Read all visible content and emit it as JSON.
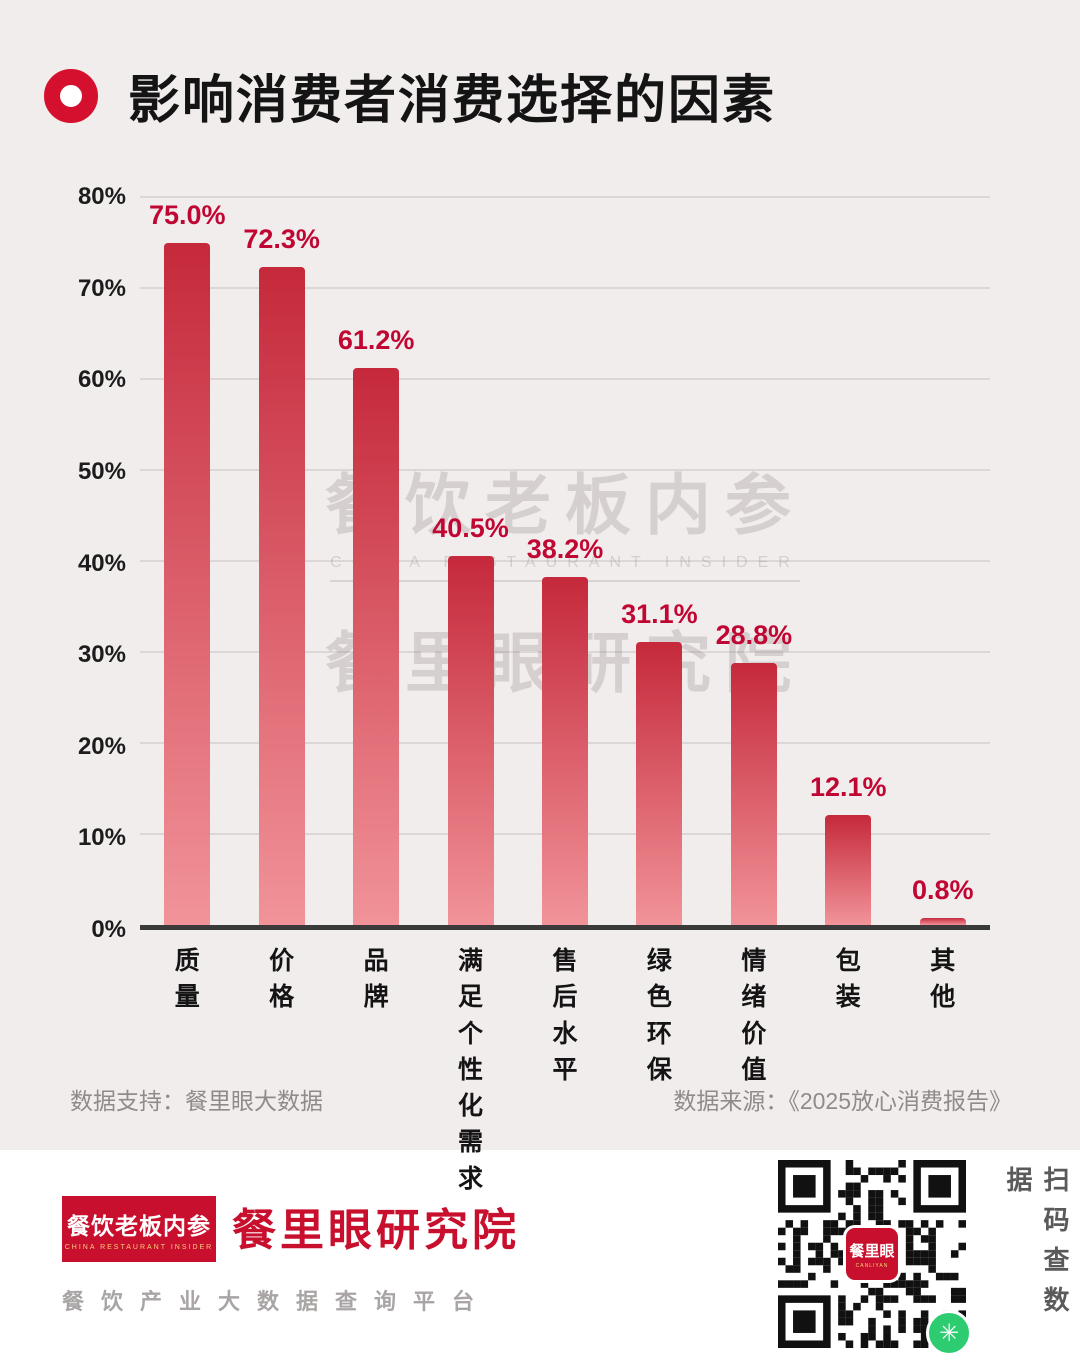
{
  "title": "影响消费者消费选择的因素",
  "chart_data": {
    "type": "bar",
    "categories": [
      "质量",
      "价格",
      "品牌",
      "满足\n个性化\n需求",
      "售后\n水平",
      "绿色\n环保",
      "情绪\n价值",
      "包装",
      "其他"
    ],
    "values": [
      75.0,
      72.3,
      61.2,
      40.5,
      38.2,
      31.1,
      28.8,
      12.1,
      0.8
    ],
    "value_labels": [
      "75.0%",
      "72.3%",
      "61.2%",
      "40.5%",
      "38.2%",
      "31.1%",
      "28.8%",
      "12.1%",
      "0.8%"
    ],
    "title": "影响消费者消费选择的因素",
    "xlabel": "",
    "ylabel": "",
    "ylim": [
      0,
      80
    ],
    "yticks": [
      "0%",
      "10%",
      "20%",
      "30%",
      "40%",
      "50%",
      "60%",
      "70%",
      "80%"
    ],
    "grid": true,
    "legend": false,
    "bar_color_top": "#c5293b",
    "bar_color_bottom": "#f19399",
    "value_label_color": "#c00733"
  },
  "watermark": {
    "line1": "餐饮老板内参",
    "line1_sub": "CHINA RESTAURANT INSIDER",
    "line2": "餐里眼研究院"
  },
  "footnotes": {
    "left": "数据支持：餐里眼大数据",
    "right": "数据来源：《2025放心消费报告》"
  },
  "footer": {
    "logo_line1": "餐饮老板内参",
    "logo_sub": "CHINA RESTAURANT INSIDER",
    "brand": "餐里眼研究院",
    "tagline": "餐饮产业大数据查询平台",
    "qr_center_label": "餐里眼",
    "qr_center_sub": "CANLIYAN",
    "scan_text": "扫码查数据"
  }
}
